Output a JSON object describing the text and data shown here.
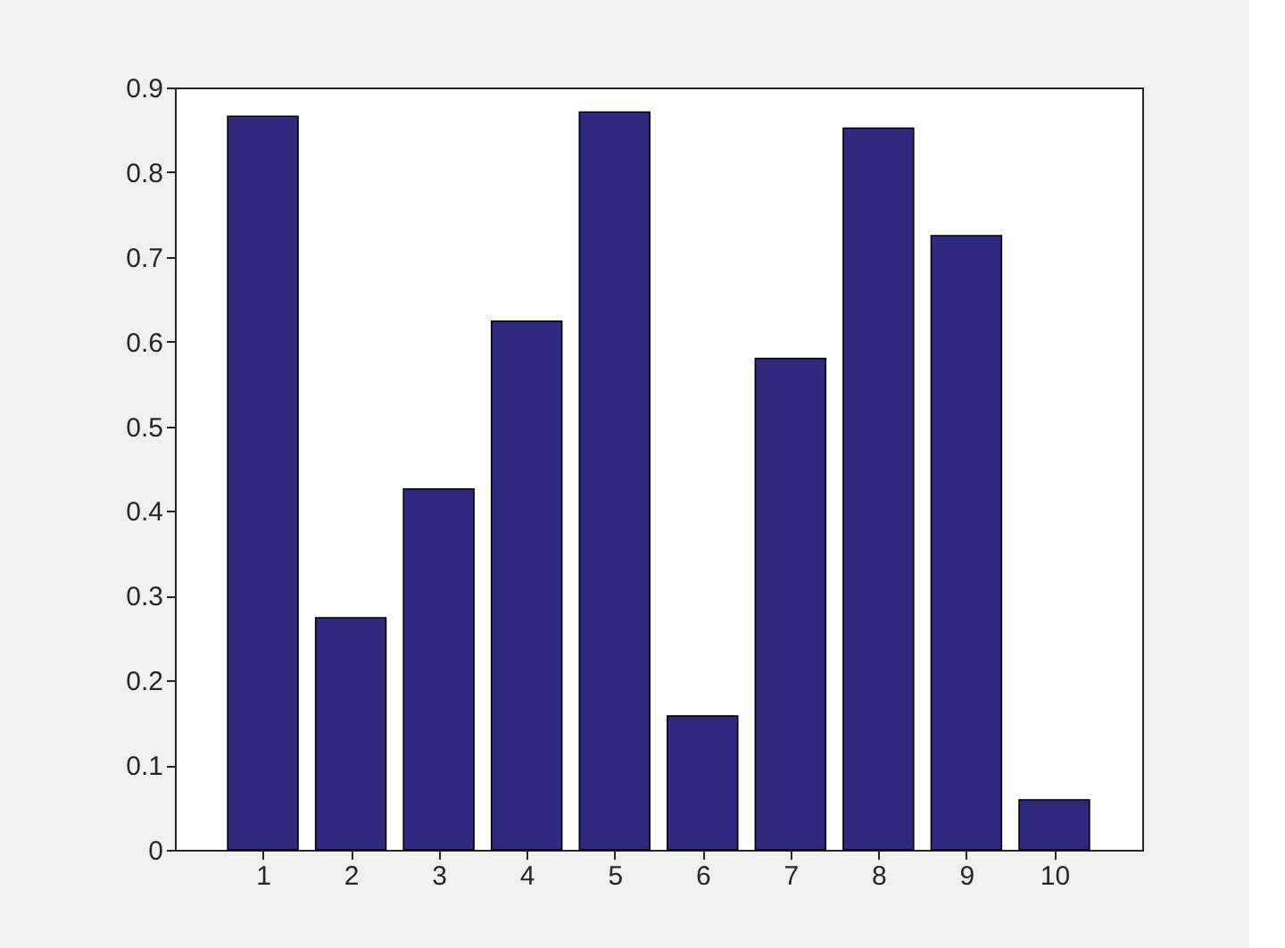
{
  "chart_data": {
    "type": "bar",
    "x": [
      1,
      2,
      3,
      4,
      5,
      6,
      7,
      8,
      9,
      10
    ],
    "values": [
      0.866,
      0.274,
      0.426,
      0.624,
      0.871,
      0.158,
      0.58,
      0.852,
      0.725,
      0.059
    ],
    "color": "#31287f",
    "xlim": [
      0,
      11
    ],
    "xticks": [
      1,
      2,
      3,
      4,
      5,
      6,
      7,
      8,
      9,
      10
    ],
    "ylim": [
      0,
      0.9
    ],
    "yticks": [
      0,
      0.1,
      0.2,
      0.3,
      0.4,
      0.5,
      0.6,
      0.7,
      0.8,
      0.9
    ],
    "grid": false
  }
}
